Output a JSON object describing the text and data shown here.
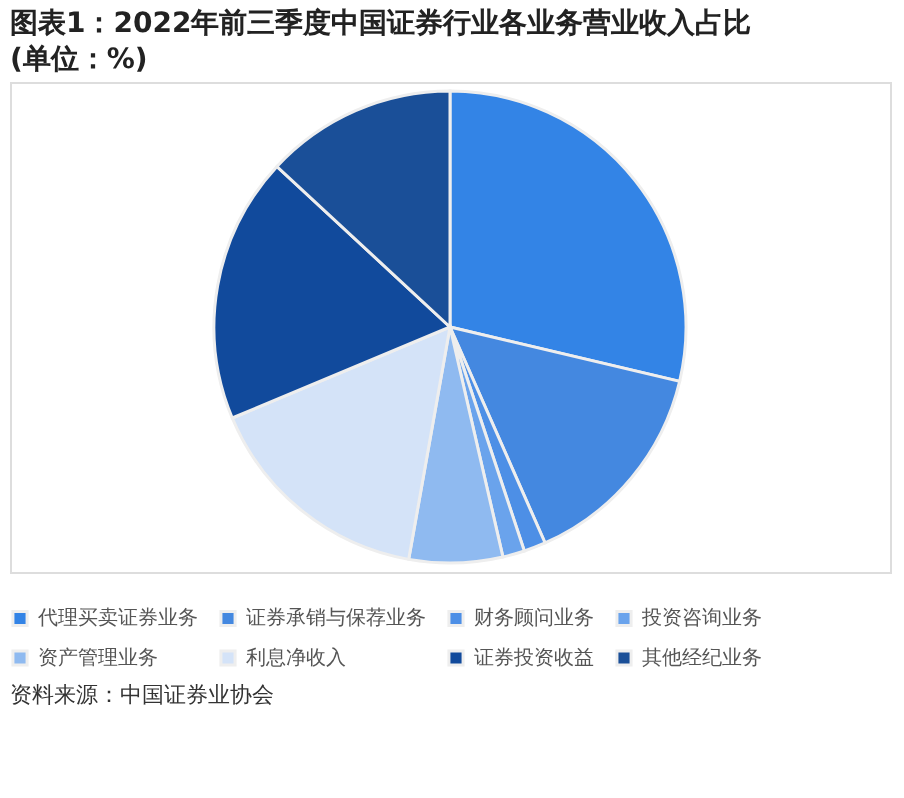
{
  "chart_data": {
    "type": "pie",
    "title": "图表1：2022年前三季度中国证券行业各业务营业收入占比(单位：%)",
    "categories": [
      "代理买卖证券业务",
      "证券承销与保荐业务",
      "财务顾问业务",
      "投资咨询业务",
      "资产管理业务",
      "利息净收入",
      "证券投资收益",
      "其他经纪业务"
    ],
    "values": [
      28.7,
      14.7,
      1.5,
      1.5,
      6.4,
      15.9,
      18.2,
      13.1
    ],
    "colors": [
      "#3384e6",
      "#4488e0",
      "#4d8fe6",
      "#6aa3ec",
      "#8fbaf0",
      "#d4e3f8",
      "#114a9c",
      "#1a4f98"
    ],
    "legend": "bottom",
    "annotations": [
      "资料来源：中国证券业协会"
    ]
  }
}
